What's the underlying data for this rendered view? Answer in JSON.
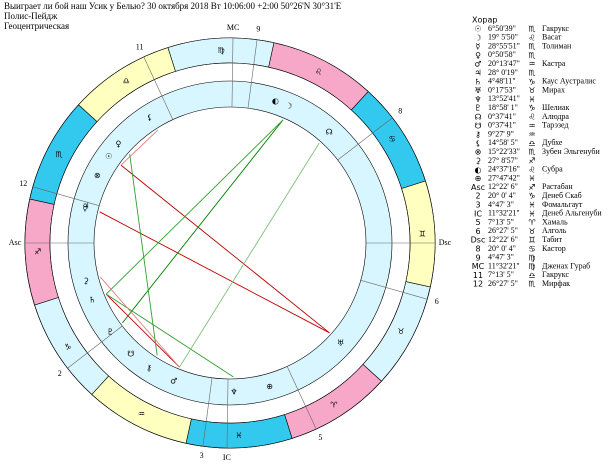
{
  "header": {
    "title": "Выиграет ли бой наш Усик у Белью?  30 октября 2018  Вт  10:06:00 +2:00 50°26'N  30°31'E",
    "system": "Полис-Пейдж",
    "mode": "Геоцентрическая"
  },
  "signs": [
    "♈",
    "♉",
    "♊",
    "♋",
    "♌",
    "♍",
    "♎",
    "♏",
    "♐",
    "♑",
    "♒",
    "♓"
  ],
  "table": {
    "title": "Хорар",
    "planets": [
      {
        "glyph": "☉",
        "pos": "6°50'39\"",
        "sign": "♏",
        "star": "Гакрукс"
      },
      {
        "glyph": "☽",
        "pos": "19° 5'50\"",
        "sign": "♌",
        "star": "Васат"
      },
      {
        "glyph": "☿",
        "pos": "28°55'51\"",
        "sign": "♏",
        "star": "Толиман"
      },
      {
        "glyph": "♀",
        "pos": "0°50'58\"",
        "sign": "♏"
      },
      {
        "glyph": "♂",
        "pos": "20°13'47\"",
        "sign": "♒",
        "star": "Кастра"
      },
      {
        "glyph": "♃",
        "pos": "28° 0'19\"",
        "sign": "♏"
      },
      {
        "glyph": "♄",
        "pos": "4°48'11\"",
        "sign": "♑",
        "star": "Каус Аустралис"
      },
      {
        "glyph": "♅",
        "pos": "0°17'53\"",
        "sign": "♉",
        "star": "Мирах"
      },
      {
        "glyph": "♆",
        "pos": "13°52'41\"",
        "sign": "♓"
      },
      {
        "glyph": "♇",
        "pos": "18°58' 1\"",
        "sign": "♑",
        "star": "Шелиак"
      },
      {
        "glyph": "☊",
        "pos": "0°37'41\"",
        "sign": "♌",
        "star": "Алюдра"
      },
      {
        "glyph": "☋",
        "pos": "0°37'41\"",
        "sign": "♒",
        "star": "Тарэзед"
      },
      {
        "glyph": "⚷",
        "pos": "9°27' 9\"",
        "sign": "♒"
      },
      {
        "glyph": "⚸",
        "pos": "14°58' 5\"",
        "sign": "♎",
        "star": "Дубхе"
      },
      {
        "glyph": "⊗",
        "pos": "15°22'33\"",
        "sign": "♏",
        "star": "Зубен Эльгенуби"
      },
      {
        "glyph": "⚳",
        "pos": "27° 8'57\"",
        "sign": "♐"
      },
      {
        "glyph": "◐",
        "pos": "24°37'16\"",
        "sign": "♌",
        "star": "Субра"
      },
      {
        "glyph": "⊕",
        "pos": "27°47'42\"",
        "sign": "♓"
      }
    ],
    "houses": [
      {
        "label": "Asc",
        "pos": "12°22' 6\"",
        "sign": "♐",
        "star": "Растабан"
      },
      {
        "label": "2",
        "pos": "20° 0' 4\"",
        "sign": "♑",
        "star": "Денеб Скаб"
      },
      {
        "label": "3",
        "pos": "4°47' 3\"",
        "sign": "♓",
        "star": "Фомальгаут"
      },
      {
        "label": "IC",
        "pos": "11°32'21\"",
        "sign": "♓",
        "star": "Денеб Альгенуби"
      },
      {
        "label": "5",
        "pos": "7°13' 5\"",
        "sign": "♈",
        "star": "Хамаль"
      },
      {
        "label": "6",
        "pos": "26°27' 5\"",
        "sign": "♉",
        "star": "Алголь"
      },
      {
        "label": "Dsc",
        "pos": "12°22' 6\"",
        "sign": "♊",
        "star": "Табит"
      },
      {
        "label": "8",
        "pos": "20° 0' 4\"",
        "sign": "♋",
        "star": "Кастор"
      },
      {
        "label": "9",
        "pos": "4°47' 3\"",
        "sign": "♍"
      },
      {
        "label": "MC",
        "pos": "11°32'21\"",
        "sign": "♍",
        "star": "Дженах Гураб"
      },
      {
        "label": "11",
        "pos": "7°13' 5\"",
        "sign": "♎",
        "star": "Гакрукс"
      },
      {
        "label": "12",
        "pos": "26°27' 5\"",
        "sign": "♏",
        "star": "Мирфак"
      }
    ]
  }
}
